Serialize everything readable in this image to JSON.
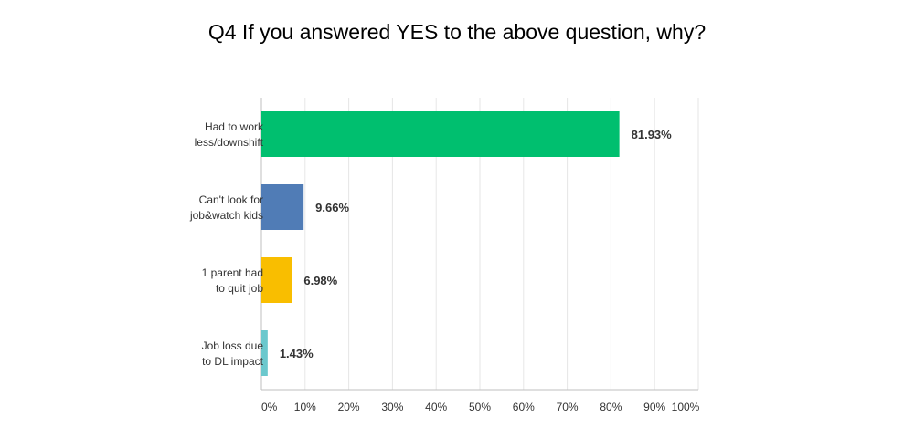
{
  "chart_data": {
    "type": "bar",
    "orientation": "horizontal",
    "title": "Q4 If you answered YES to the above question, why?",
    "categories": [
      [
        "Had to work",
        "less/downshift"
      ],
      [
        "Can't look for",
        "job&watch kids"
      ],
      [
        "1 parent had",
        "to quit job"
      ],
      [
        "Job loss due",
        "to DL impact"
      ]
    ],
    "values": [
      81.93,
      9.66,
      6.98,
      1.43
    ],
    "value_labels": [
      "81.93%",
      "9.66%",
      "6.98%",
      "1.43%"
    ],
    "colors": [
      "#00bf6f",
      "#507cb6",
      "#f9be00",
      "#6bc8cd"
    ],
    "xlim": [
      0,
      100
    ],
    "xticks": [
      "0%",
      "10%",
      "20%",
      "30%",
      "40%",
      "50%",
      "60%",
      "70%",
      "80%",
      "90%",
      "100%"
    ],
    "grid": true,
    "legend": "none"
  }
}
